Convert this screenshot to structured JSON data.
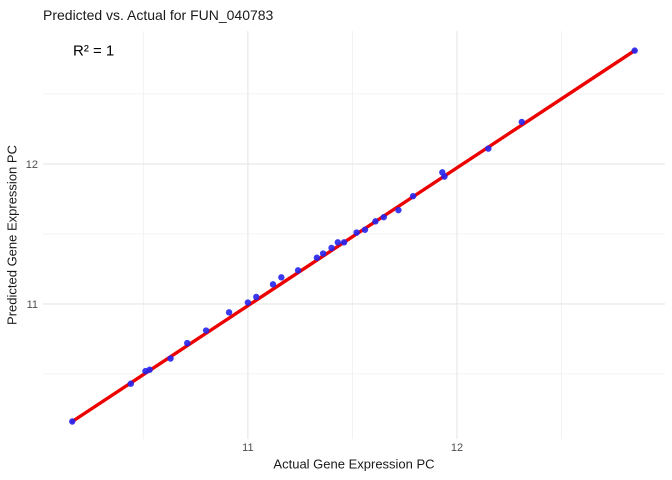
{
  "title": "Predicted vs. Actual for FUN_040783",
  "colors": {
    "point": "#2525f0",
    "fit_line": "#ec0000",
    "grid_major": "#e6e6e6",
    "grid_minor": "#f1f1f1",
    "tick_label": "#4d4d4d",
    "text": "#1a1a1a",
    "background": "#ffffff"
  },
  "chart_data": {
    "type": "scatter",
    "title": "Predicted vs. Actual for FUN_040783",
    "annotation": "R² = 1",
    "xlabel": "Actual Gene Expression PC",
    "ylabel": "Predicted Gene Expression PC",
    "xlim": [
      10.02,
      12.995
    ],
    "ylim": [
      10.035,
      12.95
    ],
    "x_ticks": [
      11,
      12
    ],
    "y_ticks": [
      11,
      12
    ],
    "x_minor_ticks": [
      10.5,
      11.5,
      12.5
    ],
    "y_minor_ticks": [
      10.5,
      11.5,
      12.5
    ],
    "grid": true,
    "legend_position": "none",
    "points": [
      [
        10.16,
        10.16
      ],
      [
        10.44,
        10.43
      ],
      [
        10.51,
        10.52
      ],
      [
        10.53,
        10.53
      ],
      [
        10.63,
        10.61
      ],
      [
        10.71,
        10.72
      ],
      [
        10.8,
        10.81
      ],
      [
        10.91,
        10.94
      ],
      [
        11.0,
        11.01
      ],
      [
        11.04,
        11.05
      ],
      [
        11.12,
        11.14
      ],
      [
        11.16,
        11.19
      ],
      [
        11.24,
        11.24
      ],
      [
        11.33,
        11.33
      ],
      [
        11.36,
        11.36
      ],
      [
        11.4,
        11.4
      ],
      [
        11.43,
        11.44
      ],
      [
        11.46,
        11.44
      ],
      [
        11.52,
        11.51
      ],
      [
        11.56,
        11.53
      ],
      [
        11.61,
        11.59
      ],
      [
        11.65,
        11.62
      ],
      [
        11.72,
        11.67
      ],
      [
        11.79,
        11.77
      ],
      [
        11.93,
        11.94
      ],
      [
        11.94,
        11.91
      ],
      [
        12.15,
        12.11
      ],
      [
        12.31,
        12.3
      ],
      [
        12.85,
        12.81
      ]
    ],
    "fit_line": {
      "x1": 10.16,
      "y1": 10.16,
      "x2": 12.85,
      "y2": 12.81,
      "r_squared": 1
    }
  }
}
